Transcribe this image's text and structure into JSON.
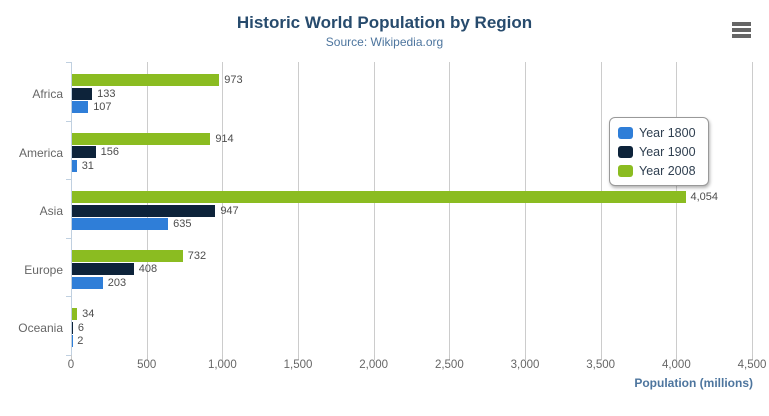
{
  "chart_data": {
    "type": "bar",
    "title": "Historic World Population by Region",
    "subtitle": "Source: Wikipedia.org",
    "categories": [
      "Africa",
      "America",
      "Asia",
      "Europe",
      "Oceania"
    ],
    "series": [
      {
        "name": "Year 1800",
        "color": "#2f7ed8",
        "values": [
          107,
          31,
          635,
          203,
          2
        ],
        "labels": [
          "107",
          "31",
          "635",
          "203",
          "2"
        ]
      },
      {
        "name": "Year 1900",
        "color": "#0d233a",
        "values": [
          133,
          156,
          947,
          408,
          6
        ],
        "labels": [
          "133",
          "156",
          "947",
          "408",
          "6"
        ]
      },
      {
        "name": "Year 2008",
        "color": "#8bbc21",
        "values": [
          973,
          914,
          4054,
          732,
          34
        ],
        "labels": [
          "973",
          "914",
          "4,054",
          "732",
          "34"
        ]
      }
    ],
    "display_order_top_to_bottom": [
      "Year 2008",
      "Year 1900",
      "Year 1800"
    ],
    "xlabel": "Population (millions)",
    "xlim": [
      0,
      4500
    ],
    "xticks": {
      "values": [
        0,
        500,
        1000,
        1500,
        2000,
        2500,
        3000,
        3500,
        4000,
        4500
      ],
      "labels": [
        "0",
        "500",
        "1,000",
        "1,500",
        "2,000",
        "2,500",
        "3,000",
        "3,500",
        "4,000",
        "4,500"
      ]
    },
    "grid": true,
    "legend_position": "right",
    "legend_items": [
      "Year 1800",
      "Year 1900",
      "Year 2008"
    ]
  },
  "colors": {
    "title": "#274b6d",
    "subtitle": "#4d759e",
    "axis_title": "#4d759e",
    "tick_label": "#666666",
    "category_label": "#666666",
    "value_label": "#4d4d4d",
    "gridline": "#cccccc",
    "axis_line": "#c0d0e0",
    "legend_border": "#999999",
    "menu_icon": "#666666"
  },
  "icons": {
    "context_menu": "hamburger-menu-icon"
  }
}
